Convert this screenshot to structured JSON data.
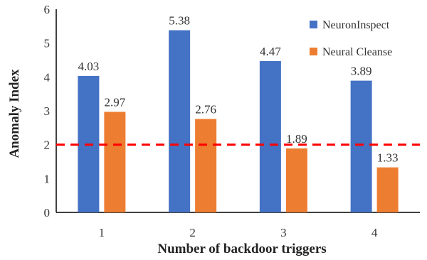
{
  "chart_data": {
    "type": "bar",
    "title": "",
    "xlabel": "Number of backdoor triggers",
    "ylabel": "Anomaly Index",
    "categories": [
      "1",
      "2",
      "3",
      "4"
    ],
    "series": [
      {
        "name": "NeuronInspect",
        "values": [
          4.03,
          5.38,
          4.47,
          3.89
        ],
        "labels": [
          "4.03",
          "5.38",
          "4.47",
          "3.89"
        ],
        "color": "#4472C4"
      },
      {
        "name": "Neural Cleanse",
        "values": [
          2.97,
          2.76,
          1.89,
          1.33
        ],
        "labels": [
          "2.97",
          "2.76",
          "1.89",
          "1.33"
        ],
        "color": "#ED7D31"
      }
    ],
    "ylim": [
      0,
      6
    ],
    "yticks": [
      "0",
      "1",
      "2",
      "3",
      "4",
      "5",
      "6"
    ],
    "threshold": {
      "value": 2,
      "color": "#FF0000",
      "style": "dashed"
    },
    "grid": false,
    "legend_position": "top-right"
  }
}
